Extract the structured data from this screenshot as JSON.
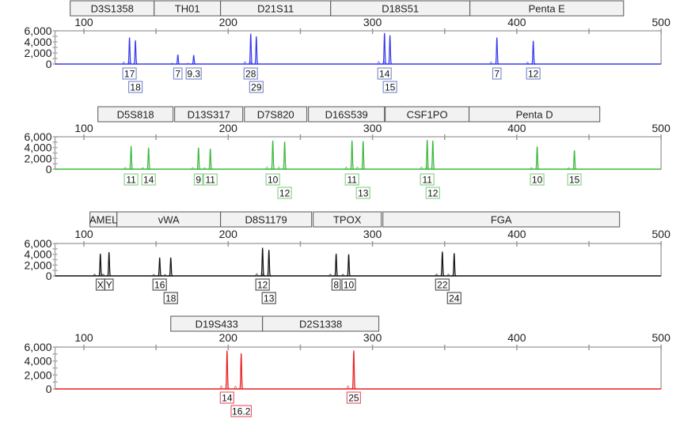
{
  "chart_data": {
    "type": "line",
    "x_axis": {
      "range": [
        80,
        500
      ],
      "ticks": [
        100,
        200,
        300,
        400,
        500
      ],
      "minor_ticks": [
        150,
        250,
        350,
        450
      ]
    },
    "y_axis": {
      "range": [
        0,
        6000
      ],
      "ticks": [
        0,
        2000,
        4000,
        6000
      ],
      "tick_labels": [
        "0",
        "2,000",
        "4,000",
        "6,000"
      ],
      "minor_step": 1000
    },
    "panels": [
      {
        "color": "#3b3bf0",
        "label_border": "#7f8fd0",
        "loci": [
          {
            "name": "D3S1358",
            "range": [
              90.5,
              148.7
            ]
          },
          {
            "name": "TH01",
            "range": [
              148.7,
              194.7
            ]
          },
          {
            "name": "D21S11",
            "range": [
              194.7,
              271
            ]
          },
          {
            "name": "D18S51",
            "range": [
              271,
              367.5
            ]
          },
          {
            "name": "Penta E",
            "range": [
              367.5,
              474
            ]
          }
        ],
        "peaks": [
          {
            "allele": "17",
            "size": 131.6,
            "height": 4800
          },
          {
            "allele": "18",
            "size": 135.7,
            "height": 4300
          },
          {
            "allele": "7",
            "size": 165.1,
            "height": 1700
          },
          {
            "allele": "9.3",
            "size": 176.1,
            "height": 1600
          },
          {
            "allele": "28",
            "size": 215.6,
            "height": 5500
          },
          {
            "allele": "29",
            "size": 219.5,
            "height": 5000
          },
          {
            "allele": "14",
            "size": 308.3,
            "height": 5600
          },
          {
            "allele": "15",
            "size": 312.1,
            "height": 5200
          },
          {
            "allele": "7",
            "size": 386.2,
            "height": 4800
          },
          {
            "allele": "12",
            "size": 411.4,
            "height": 4200
          }
        ]
      },
      {
        "color": "#3cb83c",
        "label_border": "#8fd08f",
        "loci": [
          {
            "name": "D5S818",
            "range": [
              109.7,
              161.8
            ]
          },
          {
            "name": "D13S317",
            "range": [
              162.9,
              210.1
            ]
          },
          {
            "name": "D7S820",
            "range": [
              211.2,
              254.5
            ]
          },
          {
            "name": "D16S539",
            "range": [
              255.6,
              308.3
            ]
          },
          {
            "name": "CSF1PO",
            "range": [
              308.8,
              366.9
            ]
          },
          {
            "name": "Penta D",
            "range": [
              366.9,
              457.5
            ]
          }
        ],
        "peaks": [
          {
            "allele": "11",
            "size": 132.7,
            "height": 4300
          },
          {
            "allele": "14",
            "size": 144.8,
            "height": 4000
          },
          {
            "allele": "9",
            "size": 179.4,
            "height": 4000
          },
          {
            "allele": "11",
            "size": 187.6,
            "height": 3800
          },
          {
            "allele": "10",
            "size": 230.9,
            "height": 5300
          },
          {
            "allele": "12",
            "size": 239.1,
            "height": 5100
          },
          {
            "allele": "11",
            "size": 285.8,
            "height": 5300
          },
          {
            "allele": "13",
            "size": 293.5,
            "height": 5200
          },
          {
            "allele": "11",
            "size": 337.9,
            "height": 5400
          },
          {
            "allele": "12",
            "size": 341.8,
            "height": 5300
          },
          {
            "allele": "10",
            "size": 414.1,
            "height": 4200
          },
          {
            "allele": "15",
            "size": 439.9,
            "height": 3500
          }
        ]
      },
      {
        "color": "#111111",
        "label_border": "#555555",
        "loci": [
          {
            "name": "AMEL",
            "range": [
              104.2,
              122.9
            ]
          },
          {
            "name": "vWA",
            "range": [
              122.9,
              194.7
            ]
          },
          {
            "name": "D8S1179",
            "range": [
              194.7,
              257.8
            ]
          },
          {
            "name": "TPOX",
            "range": [
              258.9,
              306.1
            ]
          },
          {
            "name": "FGA",
            "range": [
              307.2,
              471.2
            ]
          }
        ],
        "peaks": [
          {
            "allele": "X",
            "size": 111.4,
            "height": 4100
          },
          {
            "allele": "Y",
            "size": 117.4,
            "height": 4400
          },
          {
            "allele": "16",
            "size": 152.5,
            "height": 3400
          },
          {
            "allele": "18",
            "size": 160.2,
            "height": 3400
          },
          {
            "allele": "12",
            "size": 223.8,
            "height": 5200
          },
          {
            "allele": "13",
            "size": 228.2,
            "height": 4800
          },
          {
            "allele": "8",
            "size": 274.8,
            "height": 4100
          },
          {
            "allele": "10",
            "size": 283.5,
            "height": 4000
          },
          {
            "allele": "22",
            "size": 348.4,
            "height": 4500
          },
          {
            "allele": "24",
            "size": 356.6,
            "height": 4200
          }
        ]
      },
      {
        "color": "#e82020",
        "label_border": "#e86070",
        "loci": [
          {
            "name": "D19S433",
            "range": [
              160.2,
              223.8
            ]
          },
          {
            "name": "D2S1338",
            "range": [
              223.8,
              304.4
            ]
          }
        ],
        "peaks": [
          {
            "allele": "14",
            "size": 199.2,
            "height": 5500
          },
          {
            "allele": "16.2",
            "size": 209.0,
            "height": 5100
          },
          {
            "allele": "25",
            "size": 287.0,
            "height": 5500
          }
        ]
      }
    ]
  }
}
